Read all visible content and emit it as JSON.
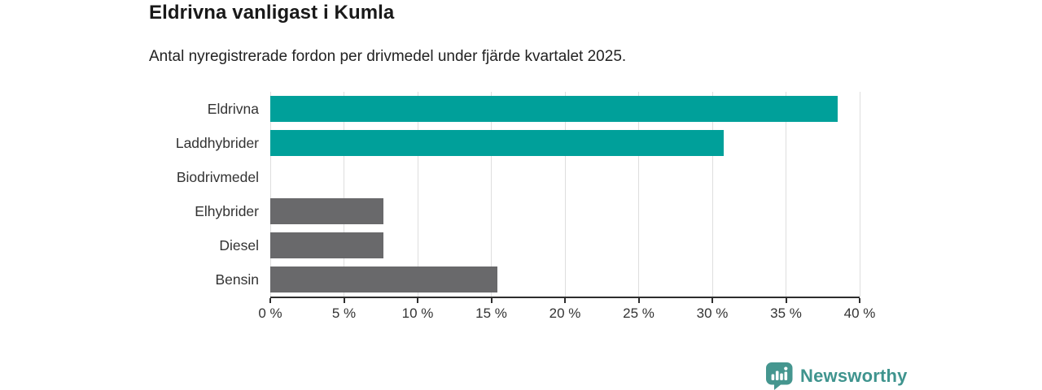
{
  "header": {
    "title": "Eldrivna vanligast i Kumla",
    "subtitle": "Antal nyregistrerade fordon per drivmedel under fjärde kvartalet 2025."
  },
  "chart_data": {
    "type": "bar",
    "orientation": "horizontal",
    "title": "Eldrivna vanligast i Kumla",
    "subtitle": "Antal nyregistrerade fordon per drivmedel under fjärde kvartalet 2025.",
    "categories": [
      "Eldrivna",
      "Laddhybrider",
      "Biodrivmedel",
      "Elhybrider",
      "Diesel",
      "Bensin"
    ],
    "values": [
      38.5,
      30.8,
      0,
      7.7,
      7.7,
      15.4
    ],
    "unit": "%",
    "xlim": [
      0,
      40
    ],
    "x_tick_values": [
      0,
      5,
      10,
      15,
      20,
      25,
      30,
      35,
      40
    ],
    "x_tick_labels": [
      "0 %",
      "5 %",
      "10 %",
      "15 %",
      "20 %",
      "25 %",
      "30 %",
      "35 %",
      "40 %"
    ],
    "bar_colors": [
      "#00A09A",
      "#00A09A",
      "#00A09A",
      "#69696B",
      "#69696B",
      "#69696B"
    ],
    "grid": true,
    "legend": false,
    "xlabel": "",
    "ylabel": ""
  },
  "colors": {
    "teal_bar": "#00A09A",
    "gray_bar": "#69696B",
    "gridline": "#dedede",
    "axis": "#2e2e2e",
    "text": "#333333",
    "brand": "#3F948E",
    "logo_badge": "#45968F"
  },
  "footer": {
    "brand_name": "Newsworthy",
    "logo_icon": "newsworthy-barchart-pin-icon"
  }
}
